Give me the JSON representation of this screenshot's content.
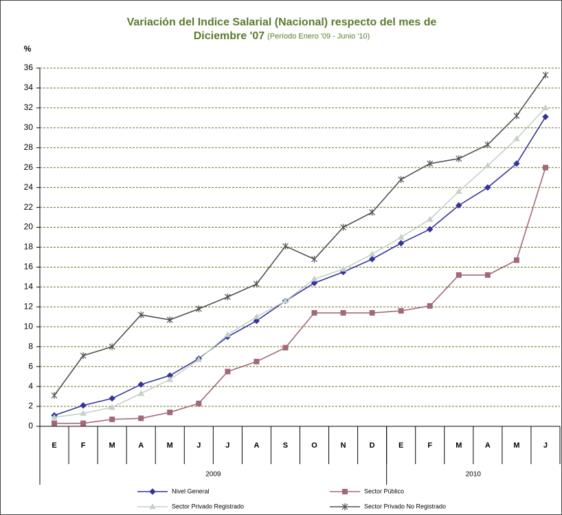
{
  "chart_data": {
    "type": "line",
    "title": [
      "Variación del Indice Salarial (Nacional) respecto del mes de",
      "Diciembre '07"
    ],
    "subtitle": "(Período Enero '09 - Junio '10)",
    "y_label": "%",
    "year_groups": [
      {
        "label": "2009",
        "months": [
          "E",
          "F",
          "M",
          "A",
          "M",
          "J",
          "J",
          "A",
          "S",
          "O",
          "N",
          "D"
        ]
      },
      {
        "label": "2010",
        "months": [
          "E",
          "F",
          "M",
          "A",
          "M",
          "J"
        ]
      }
    ],
    "ylim": [
      0,
      36
    ],
    "yticks": [
      0,
      2,
      4,
      6,
      8,
      10,
      12,
      14,
      16,
      18,
      20,
      22,
      24,
      26,
      28,
      30,
      32,
      34,
      36
    ],
    "grid": true,
    "series": [
      {
        "name": "Nivel General",
        "color": "#333399",
        "marker": "diamond",
        "values": [
          1.1,
          2.1,
          2.8,
          4.2,
          5.1,
          6.8,
          9.0,
          10.6,
          12.6,
          14.4,
          15.5,
          16.8,
          18.4,
          19.8,
          22.2,
          24.0,
          26.4,
          31.1
        ]
      },
      {
        "name": "Sector Público",
        "color": "#a06878",
        "marker": "square",
        "values": [
          0.3,
          0.3,
          0.7,
          0.8,
          1.4,
          2.3,
          5.5,
          6.5,
          7.9,
          11.4,
          11.4,
          11.4,
          11.6,
          12.1,
          15.2,
          15.2,
          16.7,
          26.0
        ]
      },
      {
        "name": "Sector Privado Registrado",
        "color": "#c4d0c8",
        "marker": "triangle",
        "values": [
          0.9,
          1.3,
          1.9,
          3.3,
          4.7,
          6.7,
          9.2,
          11.0,
          12.6,
          14.8,
          15.8,
          17.3,
          19.0,
          20.8,
          23.6,
          26.2,
          28.9,
          32.0
        ]
      },
      {
        "name": "Sector Privado No Registrado",
        "color": "#505050",
        "marker": "star",
        "values": [
          3.1,
          7.1,
          8.0,
          11.2,
          10.7,
          11.8,
          13.0,
          14.3,
          18.1,
          16.8,
          20.0,
          21.5,
          24.8,
          26.4,
          26.9,
          28.3,
          31.2,
          35.3
        ]
      }
    ]
  }
}
